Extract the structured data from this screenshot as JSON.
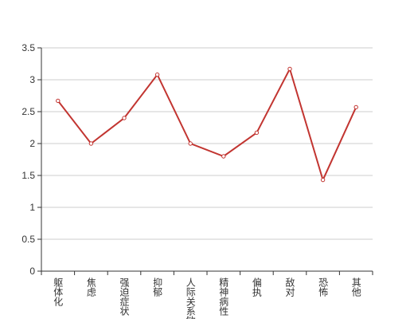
{
  "chart_data": {
    "type": "line",
    "categories": [
      "躯体化",
      "焦虑",
      "强迫症状",
      "抑郁",
      "人际关系敏感",
      "精神病性",
      "偏执",
      "敌对",
      "恐怖",
      "其他"
    ],
    "values": [
      2.67,
      2.0,
      2.4,
      3.08,
      2.0,
      1.8,
      2.17,
      3.17,
      1.43,
      2.57
    ],
    "color": "#c23531",
    "ylim": [
      0,
      3.5
    ],
    "yticks": [
      0,
      0.5,
      1,
      1.5,
      2,
      2.5,
      3,
      3.5
    ],
    "grid": true
  }
}
